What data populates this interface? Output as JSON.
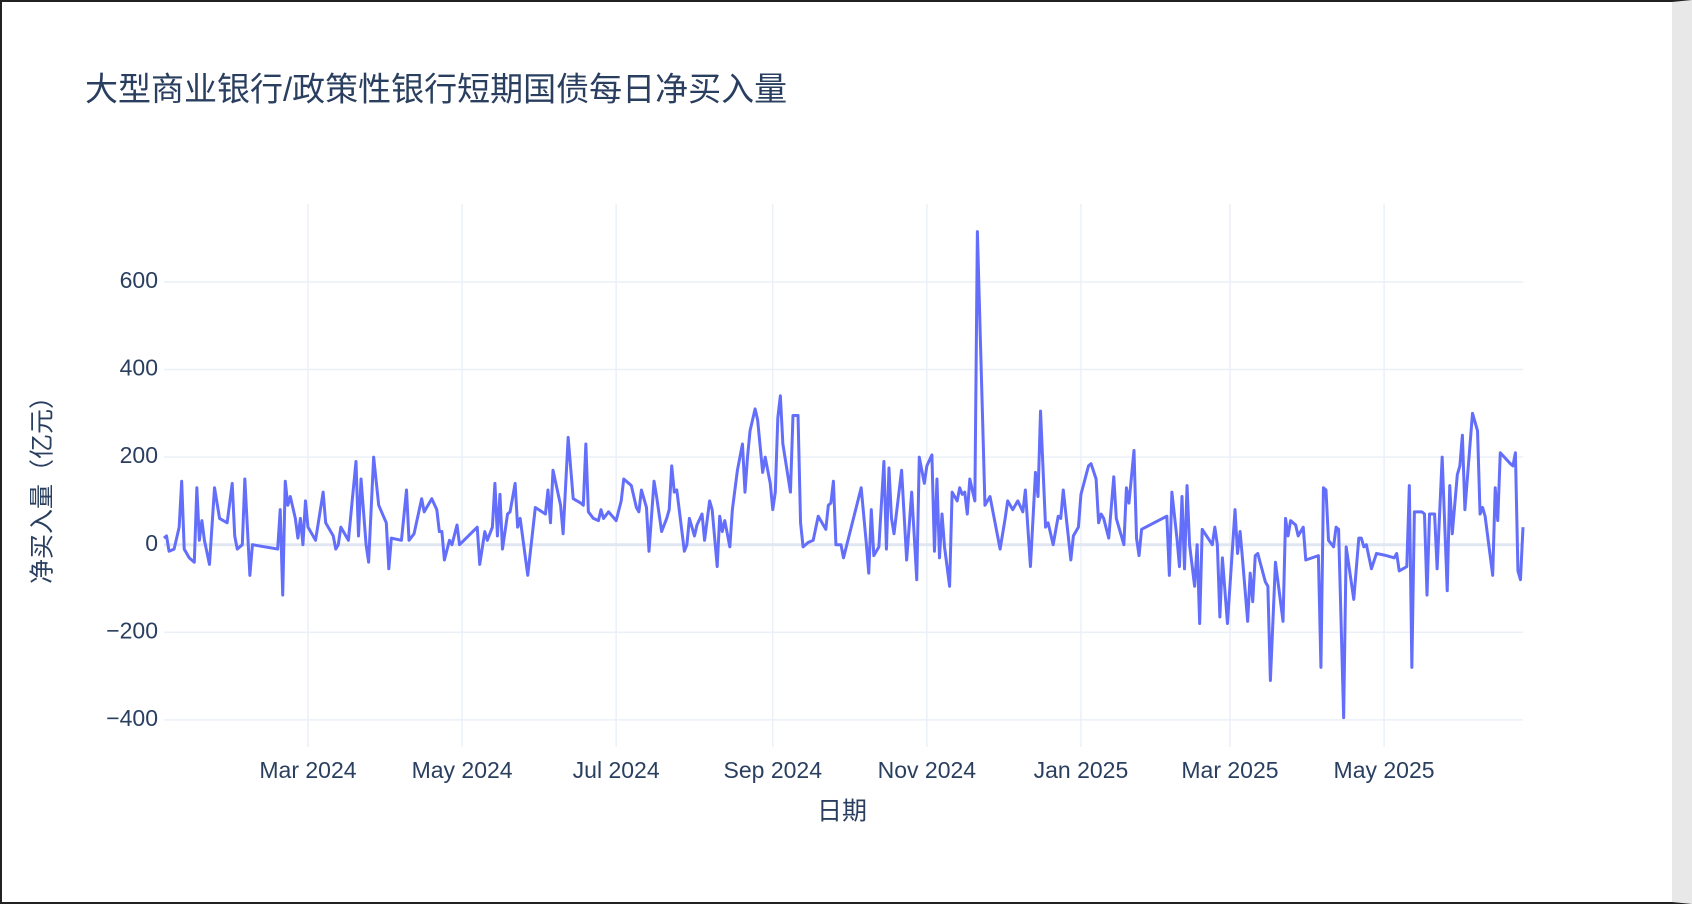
{
  "chart_data": {
    "type": "line",
    "title": "大型商业银行/政策性银行短期国债每日净买入量",
    "xlabel": "日期",
    "ylabel": "净买入量（亿元）",
    "color": "#636efa",
    "grid": true,
    "xlim": [
      "2024-01-04",
      "2025-06-25"
    ],
    "xticks": [
      {
        "value": "2024-03-01",
        "label": "Mar 2024"
      },
      {
        "value": "2024-05-01",
        "label": "May 2024"
      },
      {
        "value": "2024-07-01",
        "label": "Jul 2024"
      },
      {
        "value": "2024-09-01",
        "label": "Sep 2024"
      },
      {
        "value": "2024-11-01",
        "label": "Nov 2024"
      },
      {
        "value": "2025-01-01",
        "label": "Jan 2025"
      },
      {
        "value": "2025-03-01",
        "label": "Mar 2025"
      },
      {
        "value": "2025-05-01",
        "label": "May 2025"
      }
    ],
    "ylim": [
      -462,
      778
    ],
    "yticks": [
      {
        "value": -400,
        "label": "−400"
      },
      {
        "value": -200,
        "label": "−200"
      },
      0,
      200,
      400,
      600
    ],
    "x": [
      "2024-01-04",
      "2024-01-05",
      "2024-01-06",
      "2024-01-08",
      "2024-01-10",
      "2024-01-11",
      "2024-01-12",
      "2024-01-14",
      "2024-01-16",
      "2024-01-17",
      "2024-01-18",
      "2024-01-19",
      "2024-01-20",
      "2024-01-22",
      "2024-01-24",
      "2024-01-26",
      "2024-01-29",
      "2024-01-31",
      "2024-02-01",
      "2024-02-02",
      "2024-02-04",
      "2024-02-05",
      "2024-02-07",
      "2024-02-08",
      "2024-02-18",
      "2024-02-19",
      "2024-02-20",
      "2024-02-21",
      "2024-02-22",
      "2024-02-23",
      "2024-02-25",
      "2024-02-26",
      "2024-02-27",
      "2024-02-28",
      "2024-02-29",
      "2024-03-01",
      "2024-03-04",
      "2024-03-07",
      "2024-03-08",
      "2024-03-11",
      "2024-03-12",
      "2024-03-13",
      "2024-03-14",
      "2024-03-17",
      "2024-03-20",
      "2024-03-21",
      "2024-03-22",
      "2024-03-24",
      "2024-03-25",
      "2024-03-27",
      "2024-03-29",
      "2024-04-01",
      "2024-04-02",
      "2024-04-03",
      "2024-04-07",
      "2024-04-09",
      "2024-04-10",
      "2024-04-12",
      "2024-04-15",
      "2024-04-16",
      "2024-04-19",
      "2024-04-21",
      "2024-04-22",
      "2024-04-23",
      "2024-04-24",
      "2024-04-26",
      "2024-04-27",
      "2024-04-29",
      "2024-04-30",
      "2024-05-07",
      "2024-05-08",
      "2024-05-10",
      "2024-05-11",
      "2024-05-13",
      "2024-05-14",
      "2024-05-15",
      "2024-05-16",
      "2024-05-17",
      "2024-05-19",
      "2024-05-20",
      "2024-05-22",
      "2024-05-23",
      "2024-05-24",
      "2024-05-27",
      "2024-05-30",
      "2024-06-03",
      "2024-06-04",
      "2024-06-05",
      "2024-06-06",
      "2024-06-09",
      "2024-06-10",
      "2024-06-12",
      "2024-06-14",
      "2024-06-17",
      "2024-06-18",
      "2024-06-19",
      "2024-06-20",
      "2024-06-22",
      "2024-06-24",
      "2024-06-25",
      "2024-06-26",
      "2024-06-28",
      "2024-07-01",
      "2024-07-03",
      "2024-07-04",
      "2024-07-07",
      "2024-07-09",
      "2024-07-10",
      "2024-07-11",
      "2024-07-13",
      "2024-07-14",
      "2024-07-16",
      "2024-07-17",
      "2024-07-19",
      "2024-07-21",
      "2024-07-22",
      "2024-07-23",
      "2024-07-24",
      "2024-07-25",
      "2024-07-28",
      "2024-07-29",
      "2024-07-30",
      "2024-08-01",
      "2024-08-02",
      "2024-08-04",
      "2024-08-05",
      "2024-08-07",
      "2024-08-08",
      "2024-08-10",
      "2024-08-11",
      "2024-08-12",
      "2024-08-13",
      "2024-08-15",
      "2024-08-16",
      "2024-08-18",
      "2024-08-20",
      "2024-08-21",
      "2024-08-22",
      "2024-08-23",
      "2024-08-25",
      "2024-08-26",
      "2024-08-28",
      "2024-08-29",
      "2024-08-31",
      "2024-09-01",
      "2024-09-02",
      "2024-09-03",
      "2024-09-04",
      "2024-09-05",
      "2024-09-08",
      "2024-09-09",
      "2024-09-11",
      "2024-09-12",
      "2024-09-13",
      "2024-09-15",
      "2024-09-17",
      "2024-09-19",
      "2024-09-20",
      "2024-09-22",
      "2024-09-23",
      "2024-09-24",
      "2024-09-25",
      "2024-09-26",
      "2024-09-28",
      "2024-09-29",
      "2024-10-06",
      "2024-10-08",
      "2024-10-09",
      "2024-10-10",
      "2024-10-11",
      "2024-10-13",
      "2024-10-15",
      "2024-10-16",
      "2024-10-17",
      "2024-10-18",
      "2024-10-19",
      "2024-10-22",
      "2024-10-24",
      "2024-10-26",
      "2024-10-28",
      "2024-10-29",
      "2024-10-31",
      "2024-11-01",
      "2024-11-03",
      "2024-11-04",
      "2024-11-05",
      "2024-11-06",
      "2024-11-07",
      "2024-11-08",
      "2024-11-10",
      "2024-11-11",
      "2024-11-13",
      "2024-11-14",
      "2024-11-15",
      "2024-11-16",
      "2024-11-17",
      "2024-11-18",
      "2024-11-20",
      "2024-11-21",
      "2024-11-23",
      "2024-11-24",
      "2024-11-26",
      "2024-11-30",
      "2024-12-02",
      "2024-12-03",
      "2024-12-05",
      "2024-12-07",
      "2024-12-09",
      "2024-12-10",
      "2024-12-12",
      "2024-12-14",
      "2024-12-15",
      "2024-12-16",
      "2024-12-18",
      "2024-12-19",
      "2024-12-21",
      "2024-12-23",
      "2024-12-24",
      "2024-12-25",
      "2024-12-28",
      "2024-12-29",
      "2024-12-31",
      "2025-01-01",
      "2025-01-04",
      "2025-01-05",
      "2025-01-07",
      "2025-01-08",
      "2025-01-09",
      "2025-01-10",
      "2025-01-12",
      "2025-01-14",
      "2025-01-15",
      "2025-01-18",
      "2025-01-19",
      "2025-01-20",
      "2025-01-22",
      "2025-01-23",
      "2025-01-24",
      "2025-01-25",
      "2025-02-04",
      "2025-02-05",
      "2025-02-06",
      "2025-02-08",
      "2025-02-09",
      "2025-02-10",
      "2025-02-11",
      "2025-02-12",
      "2025-02-13",
      "2025-02-15",
      "2025-02-16",
      "2025-02-17",
      "2025-02-18",
      "2025-02-22",
      "2025-02-23",
      "2025-02-24",
      "2025-02-25",
      "2025-02-26",
      "2025-02-28",
      "2025-03-03",
      "2025-03-04",
      "2025-03-05",
      "2025-03-06",
      "2025-03-08",
      "2025-03-09",
      "2025-03-10",
      "2025-03-11",
      "2025-03-12",
      "2025-03-15",
      "2025-03-16",
      "2025-03-17",
      "2025-03-19",
      "2025-03-22",
      "2025-03-23",
      "2025-03-24",
      "2025-03-25",
      "2025-03-27",
      "2025-03-28",
      "2025-03-30",
      "2025-03-31",
      "2025-04-05",
      "2025-04-06",
      "2025-04-07",
      "2025-04-08",
      "2025-04-09",
      "2025-04-11",
      "2025-04-12",
      "2025-04-13",
      "2025-04-15",
      "2025-04-16",
      "2025-04-19",
      "2025-04-21",
      "2025-04-22",
      "2025-04-23",
      "2025-04-24",
      "2025-04-26",
      "2025-04-28",
      "2025-05-02",
      "2025-05-05",
      "2025-05-06",
      "2025-05-07",
      "2025-05-10",
      "2025-05-11",
      "2025-05-12",
      "2025-05-13",
      "2025-05-16",
      "2025-05-17",
      "2025-05-18",
      "2025-05-19",
      "2025-05-21",
      "2025-05-22",
      "2025-05-24",
      "2025-05-26",
      "2025-05-27",
      "2025-05-28",
      "2025-05-30",
      "2025-05-31",
      "2025-06-01",
      "2025-06-02",
      "2025-06-05",
      "2025-06-07",
      "2025-06-08",
      "2025-06-09",
      "2025-06-10",
      "2025-06-13",
      "2025-06-14",
      "2025-06-15",
      "2025-06-16",
      "2025-06-20",
      "2025-06-21",
      "2025-06-22",
      "2025-06-23",
      "2025-06-24",
      "2025-06-25"
    ],
    "values": [
      15,
      20,
      -15,
      -10,
      40,
      145,
      -10,
      -30,
      -40,
      130,
      10,
      55,
      10,
      -45,
      130,
      60,
      50,
      140,
      20,
      -10,
      0,
      150,
      -70,
      0,
      -10,
      80,
      -115,
      145,
      90,
      110,
      60,
      15,
      60,
      0,
      100,
      40,
      10,
      120,
      50,
      20,
      -10,
      0,
      40,
      10,
      190,
      20,
      150,
      0,
      -40,
      200,
      90,
      50,
      -55,
      15,
      10,
      125,
      10,
      25,
      105,
      75,
      105,
      80,
      30,
      30,
      -35,
      10,
      0,
      45,
      0,
      40,
      -45,
      30,
      10,
      40,
      140,
      20,
      115,
      -10,
      70,
      75,
      140,
      40,
      60,
      -70,
      85,
      70,
      125,
      50,
      170,
      90,
      25,
      245,
      105,
      95,
      90,
      230,
      75,
      60,
      55,
      80,
      60,
      75,
      55,
      100,
      150,
      135,
      85,
      75,
      125,
      85,
      -15,
      145,
      110,
      30,
      60,
      80,
      180,
      120,
      125,
      -15,
      0,
      60,
      20,
      45,
      70,
      10,
      100,
      80,
      -50,
      65,
      30,
      55,
      -5,
      80,
      170,
      230,
      120,
      200,
      260,
      310,
      285,
      165,
      200,
      140,
      80,
      120,
      290,
      340,
      230,
      120,
      295,
      295,
      50,
      -5,
      5,
      10,
      65,
      55,
      35,
      90,
      95,
      145,
      0,
      0,
      -30,
      130,
      5,
      -65,
      80,
      -25,
      -5,
      190,
      -10,
      175,
      60,
      25,
      170,
      -35,
      120,
      -80,
      200,
      140,
      180,
      205,
      -15,
      150,
      -30,
      70,
      -5,
      -95,
      120,
      100,
      130,
      115,
      120,
      70,
      150,
      100,
      715,
      300,
      90,
      110,
      -10,
      60,
      100,
      80,
      100,
      75,
      125,
      -50,
      165,
      110,
      305,
      40,
      50,
      0,
      65,
      60,
      125,
      -35,
      20,
      40,
      115,
      180,
      185,
      150,
      50,
      70,
      60,
      15,
      155,
      60,
      0,
      130,
      95,
      215,
      15,
      -25,
      35,
      65,
      -70,
      120,
      15,
      -50,
      110,
      -55,
      135,
      0,
      -95,
      0,
      -180,
      35,
      0,
      40,
      0,
      -165,
      -30,
      -180,
      80,
      -20,
      30,
      -35,
      -175,
      -65,
      -130,
      -25,
      -20,
      -85,
      -95,
      -310,
      -40,
      -175,
      60,
      20,
      55,
      45,
      20,
      40,
      -35,
      -25,
      -280,
      130,
      125,
      10,
      -5,
      40,
      35,
      -395,
      -5,
      -125,
      15,
      15,
      -5,
      0,
      -55,
      -20,
      -25,
      -30,
      -20,
      -60,
      -50,
      135,
      -280,
      75,
      75,
      70,
      -115,
      70,
      70,
      -55,
      200,
      -105,
      135,
      25,
      160,
      180,
      250,
      80,
      300,
      260,
      70,
      85,
      65,
      -70,
      130,
      55,
      210,
      185,
      180,
      210,
      -60,
      -80,
      40
    ]
  }
}
